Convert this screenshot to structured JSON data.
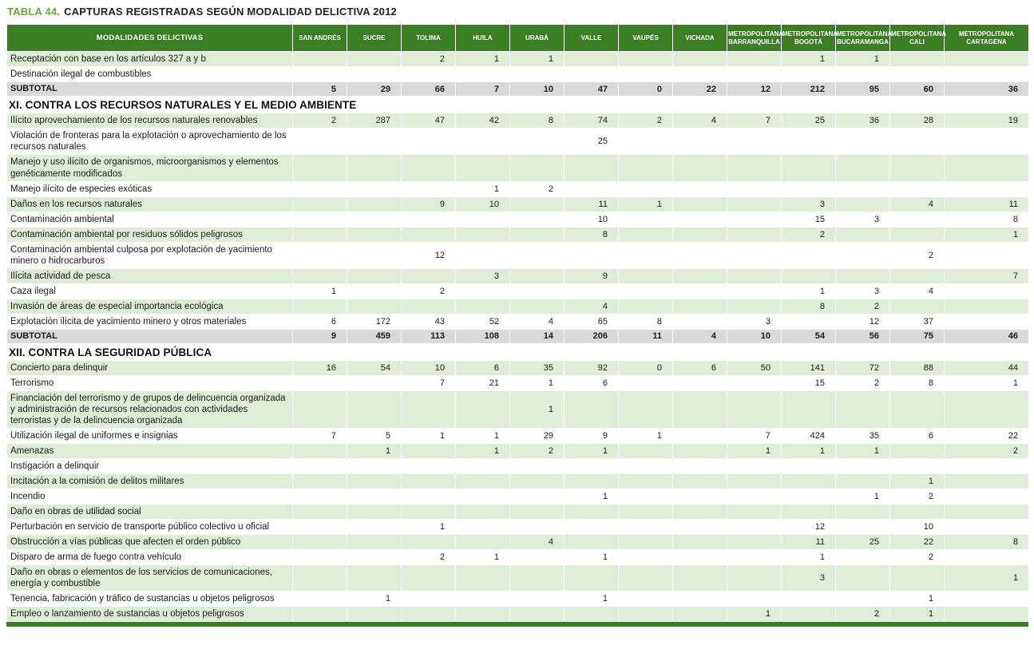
{
  "title": {
    "label": "TABLA 44.",
    "text": "CAPTURAS REGISTRADAS SEGÚN MODALIDAD DELICTIVA 2012"
  },
  "colors": {
    "header_bg": "#3b7d23",
    "row_green": "#e0edd6",
    "subtotal_bg": "#d9d9d9",
    "title_green": "#6ba43a"
  },
  "table": {
    "columns": [
      "MODALIDADES DELICTIVAS",
      "SAN ANDRÉS",
      "SUCRE",
      "TOLIMA",
      "HUILA",
      "URABÁ",
      "VALLE",
      "VAUPÉS",
      "VICHADA",
      "METROPOLITANA BARRANQUILLA",
      "METROPOLITANA BOGOTÁ",
      "METROPOLITANA BUCARAMANGA",
      "METROPOLITANA CALI",
      "METROPOLITANA CARTAGENA"
    ],
    "rows": [
      {
        "type": "data",
        "label": "Receptación con base en los artículos 327 a y b",
        "values": [
          "",
          "",
          "2",
          "1",
          "1",
          "",
          "",
          "",
          "",
          "1",
          "1",
          "",
          ""
        ]
      },
      {
        "type": "data",
        "label": "Destinación ilegal de combustibles",
        "values": [
          "",
          "",
          "",
          "",
          "",
          "",
          "",
          "",
          "",
          "",
          "",
          "",
          ""
        ]
      },
      {
        "type": "subtotal",
        "label": "SUBTOTAL",
        "values": [
          "5",
          "29",
          "66",
          "7",
          "10",
          "47",
          "0",
          "22",
          "12",
          "212",
          "95",
          "60",
          "36"
        ]
      },
      {
        "type": "section",
        "label": "XI. CONTRA LOS RECURSOS NATURALES Y EL MEDIO AMBIENTE"
      },
      {
        "type": "data",
        "label": "Ilícito aprovechamiento de los recursos naturales renovables",
        "values": [
          "2",
          "287",
          "47",
          "42",
          "8",
          "74",
          "2",
          "4",
          "7",
          "25",
          "36",
          "28",
          "19"
        ]
      },
      {
        "type": "data",
        "label": "Violación de fronteras para la explotación o aprovechamiento de los recursos naturales",
        "values": [
          "",
          "",
          "",
          "",
          "",
          "25",
          "",
          "",
          "",
          "",
          "",
          "",
          ""
        ]
      },
      {
        "type": "data",
        "label": "Manejo y uso ilícito de organismos, microorganismos y elementos genéticamente modificados",
        "values": [
          "",
          "",
          "",
          "",
          "",
          "",
          "",
          "",
          "",
          "",
          "",
          "",
          ""
        ]
      },
      {
        "type": "data",
        "label": "Manejo ilícito de especies exóticas",
        "values": [
          "",
          "",
          "",
          "1",
          "2",
          "",
          "",
          "",
          "",
          "",
          "",
          "",
          ""
        ]
      },
      {
        "type": "data",
        "label": "Daños en los recursos naturales",
        "values": [
          "",
          "",
          "9",
          "10",
          "",
          "11",
          "1",
          "",
          "",
          "3",
          "",
          "4",
          "11"
        ]
      },
      {
        "type": "data",
        "label": "Contaminación ambiental",
        "values": [
          "",
          "",
          "",
          "",
          "",
          "10",
          "",
          "",
          "",
          "15",
          "3",
          "",
          "8"
        ]
      },
      {
        "type": "data",
        "label": "Contaminación ambiental por residuos sólidos peligrosos",
        "values": [
          "",
          "",
          "",
          "",
          "",
          "8",
          "",
          "",
          "",
          "2",
          "",
          "",
          "1"
        ]
      },
      {
        "type": "data",
        "label": "Contaminación ambiental culposa por explotación de yacimiento minero o hidrocarburos",
        "values": [
          "",
          "",
          "12",
          "",
          "",
          "",
          "",
          "",
          "",
          "",
          "",
          "2",
          ""
        ]
      },
      {
        "type": "data",
        "label": "Ilícita actividad de pesca",
        "values": [
          "",
          "",
          "",
          "3",
          "",
          "9",
          "",
          "",
          "",
          "",
          "",
          "",
          "7"
        ]
      },
      {
        "type": "data",
        "label": "Caza ilegal",
        "values": [
          "1",
          "",
          "2",
          "",
          "",
          "",
          "",
          "",
          "",
          "1",
          "3",
          "4",
          ""
        ]
      },
      {
        "type": "data",
        "label": "Invasión de áreas de especial importancia ecológica",
        "values": [
          "",
          "",
          "",
          "",
          "",
          "4",
          "",
          "",
          "",
          "8",
          "2",
          "",
          ""
        ]
      },
      {
        "type": "data",
        "label": "Explotación ilícita de yacimiento minero y otros materiales",
        "values": [
          "6",
          "172",
          "43",
          "52",
          "4",
          "65",
          "8",
          "",
          "3",
          "",
          "12",
          "37",
          ""
        ]
      },
      {
        "type": "subtotal",
        "label": "SUBTOTAL",
        "values": [
          "9",
          "459",
          "113",
          "108",
          "14",
          "206",
          "11",
          "4",
          "10",
          "54",
          "56",
          "75",
          "46"
        ]
      },
      {
        "type": "section",
        "label": "XII. CONTRA LA SEGURIDAD PÚBLICA"
      },
      {
        "type": "data",
        "label": "Concierto para delinquir",
        "values": [
          "16",
          "54",
          "10",
          "6",
          "35",
          "92",
          "0",
          "6",
          "50",
          "141",
          "72",
          "88",
          "44"
        ]
      },
      {
        "type": "data",
        "label": "Terrorismo",
        "values": [
          "",
          "",
          "7",
          "21",
          "1",
          "6",
          "",
          "",
          "",
          "15",
          "2",
          "8",
          "1"
        ]
      },
      {
        "type": "data",
        "label": "Financiación del terrorismo y de grupos de delincuencia organizada y administración de recursos relacionados con actividades terroristas y de la delincuencia organizada",
        "values": [
          "",
          "",
          "",
          "",
          "1",
          "",
          "",
          "",
          "",
          "",
          "",
          "",
          ""
        ]
      },
      {
        "type": "data",
        "label": "Utilización ilegal de uniformes e insignias",
        "values": [
          "7",
          "5",
          "1",
          "1",
          "29",
          "9",
          "1",
          "",
          "7",
          "424",
          "35",
          "6",
          "22"
        ]
      },
      {
        "type": "data",
        "label": "Amenazas",
        "values": [
          "",
          "1",
          "",
          "1",
          "2",
          "1",
          "",
          "",
          "1",
          "1",
          "1",
          "",
          "2"
        ]
      },
      {
        "type": "data",
        "label": "Instigación a delinquir",
        "values": [
          "",
          "",
          "",
          "",
          "",
          "",
          "",
          "",
          "",
          "",
          "",
          "",
          ""
        ]
      },
      {
        "type": "data",
        "label": "Incitación a la comisión de delitos militares",
        "values": [
          "",
          "",
          "",
          "",
          "",
          "",
          "",
          "",
          "",
          "",
          "",
          "1",
          ""
        ]
      },
      {
        "type": "data",
        "label": "Incendio",
        "values": [
          "",
          "",
          "",
          "",
          "",
          "1",
          "",
          "",
          "",
          "",
          "1",
          "2",
          ""
        ]
      },
      {
        "type": "data",
        "label": "Daño en obras de utilidad social",
        "values": [
          "",
          "",
          "",
          "",
          "",
          "",
          "",
          "",
          "",
          "",
          "",
          "",
          ""
        ]
      },
      {
        "type": "data",
        "label": "Perturbación en servicio de transporte público colectivo u oficial",
        "values": [
          "",
          "",
          "1",
          "",
          "",
          "",
          "",
          "",
          "",
          "12",
          "",
          "10",
          ""
        ]
      },
      {
        "type": "data",
        "label": "Obstrucción a vías públicas que afecten el orden público",
        "values": [
          "",
          "",
          "",
          "",
          "4",
          "",
          "",
          "",
          "",
          "11",
          "25",
          "22",
          "8"
        ]
      },
      {
        "type": "data",
        "label": "Disparo de arma de fuego contra vehículo",
        "values": [
          "",
          "",
          "2",
          "1",
          "",
          "1",
          "",
          "",
          "",
          "1",
          "",
          "2",
          ""
        ]
      },
      {
        "type": "data",
        "label": "Daño en obras o elementos de los servicios de comunicaciones, energía y combustible",
        "values": [
          "",
          "",
          "",
          "",
          "",
          "",
          "",
          "",
          "",
          "3",
          "",
          "",
          "1"
        ]
      },
      {
        "type": "data",
        "label": "Tenencia, fabricación y tráfico de sustancias u objetos peligrosos",
        "values": [
          "",
          "1",
          "",
          "",
          "",
          "1",
          "",
          "",
          "",
          "",
          "",
          "1",
          ""
        ]
      },
      {
        "type": "data",
        "label": "Empleo o lanzamiento de sustancias u objetos peligrosos",
        "values": [
          "",
          "",
          "",
          "",
          "",
          "",
          "",
          "",
          "1",
          "",
          "2",
          "1",
          ""
        ]
      }
    ]
  }
}
